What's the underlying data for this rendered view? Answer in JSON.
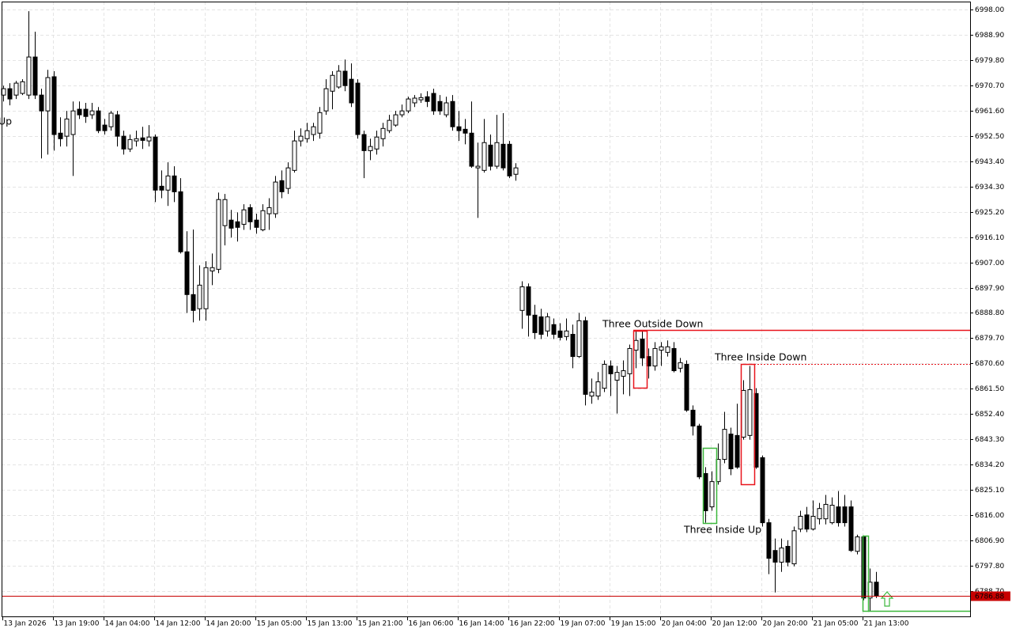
{
  "chart_data": {
    "type": "candlestick",
    "categories": [
      "13 Jan 2026",
      null,
      null,
      null,
      null,
      null,
      null,
      null,
      "13 Jan 19:00",
      null,
      null,
      null,
      null,
      null,
      null,
      null,
      "14 Jan 04:00",
      null,
      null,
      null,
      null,
      null,
      null,
      null,
      "14 Jan 12:00",
      null,
      null,
      null,
      null,
      null,
      null,
      null,
      "14 Jan 20:00",
      null,
      null,
      null,
      null,
      null,
      null,
      null,
      "15 Jan 05:00",
      null,
      null,
      null,
      null,
      null,
      null,
      null,
      "15 Jan 13:00",
      null,
      null,
      null,
      null,
      null,
      null,
      null,
      "15 Jan 21:00",
      null,
      null,
      null,
      null,
      null,
      null,
      null,
      "16 Jan 06:00",
      null,
      null,
      null,
      null,
      null,
      null,
      null,
      "16 Jan 14:00",
      null,
      null,
      null,
      null,
      null,
      null,
      null,
      "16 Jan 22:00",
      null,
      null,
      null,
      null,
      null,
      null,
      null,
      "19 Jan 07:00",
      null,
      null,
      null,
      null,
      null,
      null,
      null,
      "19 Jan 15:00",
      null,
      null,
      null,
      null,
      null,
      null,
      null,
      "20 Jan 04:00",
      null,
      null,
      null,
      null,
      null,
      null,
      null,
      "20 Jan 12:00",
      null,
      null,
      null,
      null,
      null,
      null,
      null,
      "20 Jan 20:00",
      null,
      null,
      null,
      null,
      null,
      null,
      null,
      "21 Jan 05:00",
      null,
      null,
      null,
      null,
      null,
      null,
      null,
      "21 Jan 13:00",
      null,
      null
    ],
    "open": [
      6967.2,
      6969.5,
      6967.2,
      6967.8,
      6967.2,
      6980.9,
      6967.2,
      6961.5,
      6973.8,
      6953.5,
      6952.4,
      6953.0,
      6962.1,
      6962.1,
      6960.1,
      6961.5,
      6956.4,
      6955.8,
      6960.1,
      6952.4,
      6947.8,
      6950.7,
      6951.8,
      6950.7,
      6952.1,
      6934.4,
      6933.0,
      6938.1,
      6932.4,
      6910.8,
      6895.4,
      6890.3,
      6890.3,
      6903.9,
      6904.5,
      6920.2,
      6922.2,
      6921.6,
      6920.7,
      6926.7,
      6922.2,
      6918.7,
      6924.5,
      6924.5,
      6936.4,
      6933.6,
      6940.1,
      6950.7,
      6951.5,
      6953.0,
      6953.5,
      6961.5,
      6968.6,
      6970.1,
      6975.8,
      6972.9,
      6971.5,
      6953.0,
      6947.2,
      6947.8,
      6951.5,
      6954.4,
      6956.4,
      6960.1,
      6961.5,
      6964.4,
      6965.5,
      6966.6,
      6967.8,
      6964.9,
      6960.1,
      6964.9,
      6955.8,
      6954.9,
      6953.5,
      6941.0,
      6940.1,
      6949.2,
      6941.6,
      6949.5,
      6949.5,
      6938.7,
      6889.7,
      6898.2,
      6888.0,
      6887.4,
      6882.3,
      6884.6,
      6882.3,
      6880.3,
      6881.1,
      6873.1,
      6886.0,
      6858.9,
      6858.9,
      6861.7,
      6869.7,
      6864.6,
      6866.0,
      6866.9,
      6875.4,
      6879.4,
      6873.1,
      6869.7,
      6875.4,
      6874.6,
      6876.0,
      6868.9,
      6870.3,
      6853.8,
      6848.1,
      6831.0,
      6819.0,
      6828.1,
      6836.1,
      6845.2,
      6844.7,
      6844.1,
      6844.7,
      6859.8,
      6836.7,
      6813.3,
      6803.3,
      6799.1,
      6804.8,
      6798.5,
      6811.0,
      6816.1,
      6811.0,
      6814.7,
      6814.7,
      6813.3,
      6819.0,
      6819.0,
      6819.0,
      6803.0,
      6808.2,
      6786.2,
      6791.9
    ],
    "high": [
      6970.6,
      6971.5,
      6972.3,
      6972.9,
      6997.4,
      6990.0,
      6969.5,
      6976.3,
      6975.8,
      6959.2,
      6961.5,
      6964.9,
      6964.9,
      6964.4,
      6964.4,
      6962.9,
      6958.6,
      6961.5,
      6961.5,
      6954.4,
      6953.0,
      6954.4,
      6955.8,
      6956.4,
      6953.0,
      6940.1,
      6943.0,
      6941.6,
      6937.3,
      6918.2,
      6918.8,
      6905.9,
      6907.4,
      6910.2,
      6932.1,
      6931.6,
      6925.9,
      6925.0,
      6927.9,
      6927.9,
      6924.5,
      6927.9,
      6930.1,
      6938.1,
      6940.1,
      6943.0,
      6954.4,
      6955.2,
      6957.2,
      6957.2,
      6962.9,
      6972.9,
      6975.8,
      6978.0,
      6980.0,
      6978.6,
      6972.9,
      6954.4,
      6951.5,
      6954.4,
      6957.2,
      6960.1,
      6961.5,
      6963.8,
      6966.6,
      6967.2,
      6967.8,
      6968.6,
      6969.5,
      6967.2,
      6966.6,
      6967.2,
      6961.5,
      6958.6,
      6964.9,
      6950.1,
      6958.6,
      6953.0,
      6960.1,
      6960.7,
      6950.7,
      6942.7,
      6900.2,
      6899.4,
      6891.7,
      6890.3,
      6888.8,
      6886.8,
      6885.1,
      6886.8,
      6884.6,
      6888.8,
      6887.4,
      6865.2,
      6867.5,
      6871.7,
      6871.7,
      6869.7,
      6871.7,
      6877.4,
      6882.3,
      6882.3,
      6876.0,
      6878.3,
      6878.3,
      6878.9,
      6878.3,
      6872.6,
      6871.7,
      6855.5,
      6848.9,
      6833.3,
      6831.8,
      6841.8,
      6853.2,
      6847.5,
      6856.1,
      6864.6,
      6869.7,
      6861.7,
      6837.5,
      6814.7,
      6807.6,
      6807.6,
      6807.0,
      6811.9,
      6817.6,
      6819.0,
      6821.3,
      6820.4,
      6823.3,
      6822.4,
      6824.7,
      6823.3,
      6821.3,
      6809.0,
      6808.7,
      6796.8,
      6795.6
    ],
    "low": [
      6964.9,
      6963.5,
      6965.8,
      6967.2,
      6965.8,
      6965.8,
      6944.4,
      6945.8,
      6947.2,
      6948.7,
      6948.7,
      6938.1,
      6958.6,
      6957.2,
      6958.6,
      6953.5,
      6953.0,
      6954.4,
      6948.7,
      6945.8,
      6946.7,
      6948.7,
      6947.8,
      6948.7,
      6928.7,
      6930.1,
      6927.3,
      6928.7,
      6910.2,
      6888.8,
      6885.4,
      6886.0,
      6886.0,
      6898.8,
      6903.1,
      6913.1,
      6915.9,
      6914.5,
      6918.7,
      6918.7,
      6917.3,
      6918.2,
      6918.7,
      6923.0,
      6930.1,
      6931.6,
      6939.3,
      6948.7,
      6950.1,
      6950.7,
      6951.5,
      6960.1,
      6962.1,
      6969.5,
      6968.6,
      6962.9,
      6951.5,
      6937.3,
      6943.8,
      6945.8,
      6948.7,
      6953.5,
      6955.8,
      6959.2,
      6960.7,
      6962.9,
      6964.4,
      6962.9,
      6960.1,
      6960.1,
      6959.2,
      6954.4,
      6950.7,
      6949.5,
      6941.0,
      6923.0,
      6939.3,
      6940.1,
      6940.7,
      6940.1,
      6937.3,
      6936.4,
      6883.1,
      6880.3,
      6879.4,
      6879.4,
      6880.3,
      6879.4,
      6878.9,
      6878.9,
      6868.9,
      6872.6,
      6855.5,
      6856.1,
      6857.5,
      6860.3,
      6858.9,
      6852.6,
      6859.5,
      6858.9,
      6868.9,
      6869.7,
      6865.2,
      6868.0,
      6869.7,
      6873.1,
      6867.4,
      6867.4,
      6853.2,
      6844.7,
      6829.0,
      6813.3,
      6817.6,
      6827.0,
      6834.7,
      6830.4,
      6832.7,
      6843.2,
      6843.2,
      6832.7,
      6811.9,
      6794.8,
      6788.2,
      6795.6,
      6797.6,
      6797.6,
      6809.9,
      6809.9,
      6810.5,
      6812.7,
      6812.7,
      6812.7,
      6811.9,
      6811.9,
      6802.8,
      6801.9,
      6785.4,
      6781.4,
      6786.2
    ],
    "close": [
      6969.5,
      6965.8,
      6971.5,
      6972.0,
      6980.9,
      6967.2,
      6961.5,
      6973.5,
      6953.0,
      6951.5,
      6958.6,
      6961.5,
      6960.1,
      6959.5,
      6961.5,
      6954.4,
      6954.4,
      6960.7,
      6952.4,
      6947.8,
      6951.2,
      6951.5,
      6950.9,
      6952.1,
      6933.0,
      6933.0,
      6938.1,
      6932.4,
      6910.8,
      6895.4,
      6889.7,
      6898.8,
      6905.1,
      6905.1,
      6929.6,
      6929.6,
      6919.3,
      6919.6,
      6925.9,
      6921.6,
      6919.6,
      6925.6,
      6926.7,
      6935.9,
      6932.4,
      6941.0,
      6950.7,
      6952.4,
      6954.4,
      6955.8,
      6960.9,
      6969.5,
      6974.3,
      6975.8,
      6970.6,
      6964.4,
      6953.0,
      6947.2,
      6948.7,
      6952.1,
      6955.2,
      6958.1,
      6960.1,
      6961.5,
      6965.8,
      6966.1,
      6966.3,
      6964.9,
      6961.5,
      6961.5,
      6964.4,
      6955.8,
      6954.4,
      6953.5,
      6941.6,
      6941.6,
      6950.1,
      6941.6,
      6950.1,
      6941.0,
      6938.1,
      6941.0,
      6898.2,
      6888.0,
      6881.7,
      6881.1,
      6887.4,
      6881.1,
      6880.0,
      6882.3,
      6873.1,
      6886.0,
      6859.5,
      6860.3,
      6864.0,
      6870.3,
      6866.9,
      6867.4,
      6868.0,
      6876.0,
      6878.9,
      6872.6,
      6869.7,
      6876.0,
      6876.6,
      6876.6,
      6868.0,
      6870.9,
      6853.8,
      6848.1,
      6829.8,
      6817.6,
      6828.1,
      6836.1,
      6846.9,
      6832.7,
      6833.3,
      6860.9,
      6861.2,
      6833.3,
      6813.3,
      6800.5,
      6799.1,
      6804.2,
      6799.1,
      6810.4,
      6815.6,
      6811.0,
      6815.6,
      6818.4,
      6819.9,
      6819.6,
      6813.3,
      6813.3,
      6803.3,
      6808.2,
      6786.2,
      6791.9,
      6786.88
    ],
    "ylim": [
      6779.3,
      7000.85
    ],
    "yticks": [
      {
        "value": 6998.0,
        "label": "6998.00"
      },
      {
        "value": 6988.9,
        "label": "6988.90"
      },
      {
        "value": 6979.8,
        "label": "6979.80"
      },
      {
        "value": 6970.7,
        "label": "6970.70"
      },
      {
        "value": 6961.6,
        "label": "6961.60"
      },
      {
        "value": 6952.5,
        "label": "6952.50"
      },
      {
        "value": 6943.4,
        "label": "6943.40"
      },
      {
        "value": 6934.3,
        "label": "6934.30"
      },
      {
        "value": 6925.2,
        "label": "6925.20"
      },
      {
        "value": 6916.1,
        "label": "6916.10"
      },
      {
        "value": 6907.0,
        "label": "6907.00"
      },
      {
        "value": 6897.9,
        "label": "6897.90"
      },
      {
        "value": 6888.8,
        "label": "6888.80"
      },
      {
        "value": 6879.7,
        "label": "6879.70"
      },
      {
        "value": 6870.6,
        "label": "6870.60"
      },
      {
        "value": 6861.5,
        "label": "6861.50"
      },
      {
        "value": 6852.4,
        "label": "6852.40"
      },
      {
        "value": 6843.3,
        "label": "6843.30"
      },
      {
        "value": 6834.2,
        "label": "6834.20"
      },
      {
        "value": 6825.1,
        "label": "6825.10"
      },
      {
        "value": 6816.0,
        "label": "6816.00"
      },
      {
        "value": 6806.9,
        "label": "6806.90"
      },
      {
        "value": 6797.8,
        "label": "6797.80"
      },
      {
        "value": 6788.7,
        "label": "6788.70"
      }
    ],
    "grid": true,
    "up_color": "#ffffff",
    "down_color": "#000000",
    "current_price": 6786.88,
    "current_price_color": "#c80000",
    "levels": [
      {
        "value": 6882.7,
        "color": "#e8141c",
        "dash": false
      },
      {
        "value": 6870.4,
        "color": "#e8141c",
        "dash": true
      },
      {
        "value": 6781.6,
        "color": "#3cb83c",
        "dash": false
      }
    ],
    "annotations": [
      {
        "text": "Three Outside Down",
        "color": "#e8141c"
      },
      {
        "text": "Three Inside Down",
        "color": "#e8141c"
      },
      {
        "text": "Three Inside Up",
        "color": "#3cb83c"
      },
      {
        "text": "Up",
        "color": "#3cb83c"
      }
    ]
  }
}
